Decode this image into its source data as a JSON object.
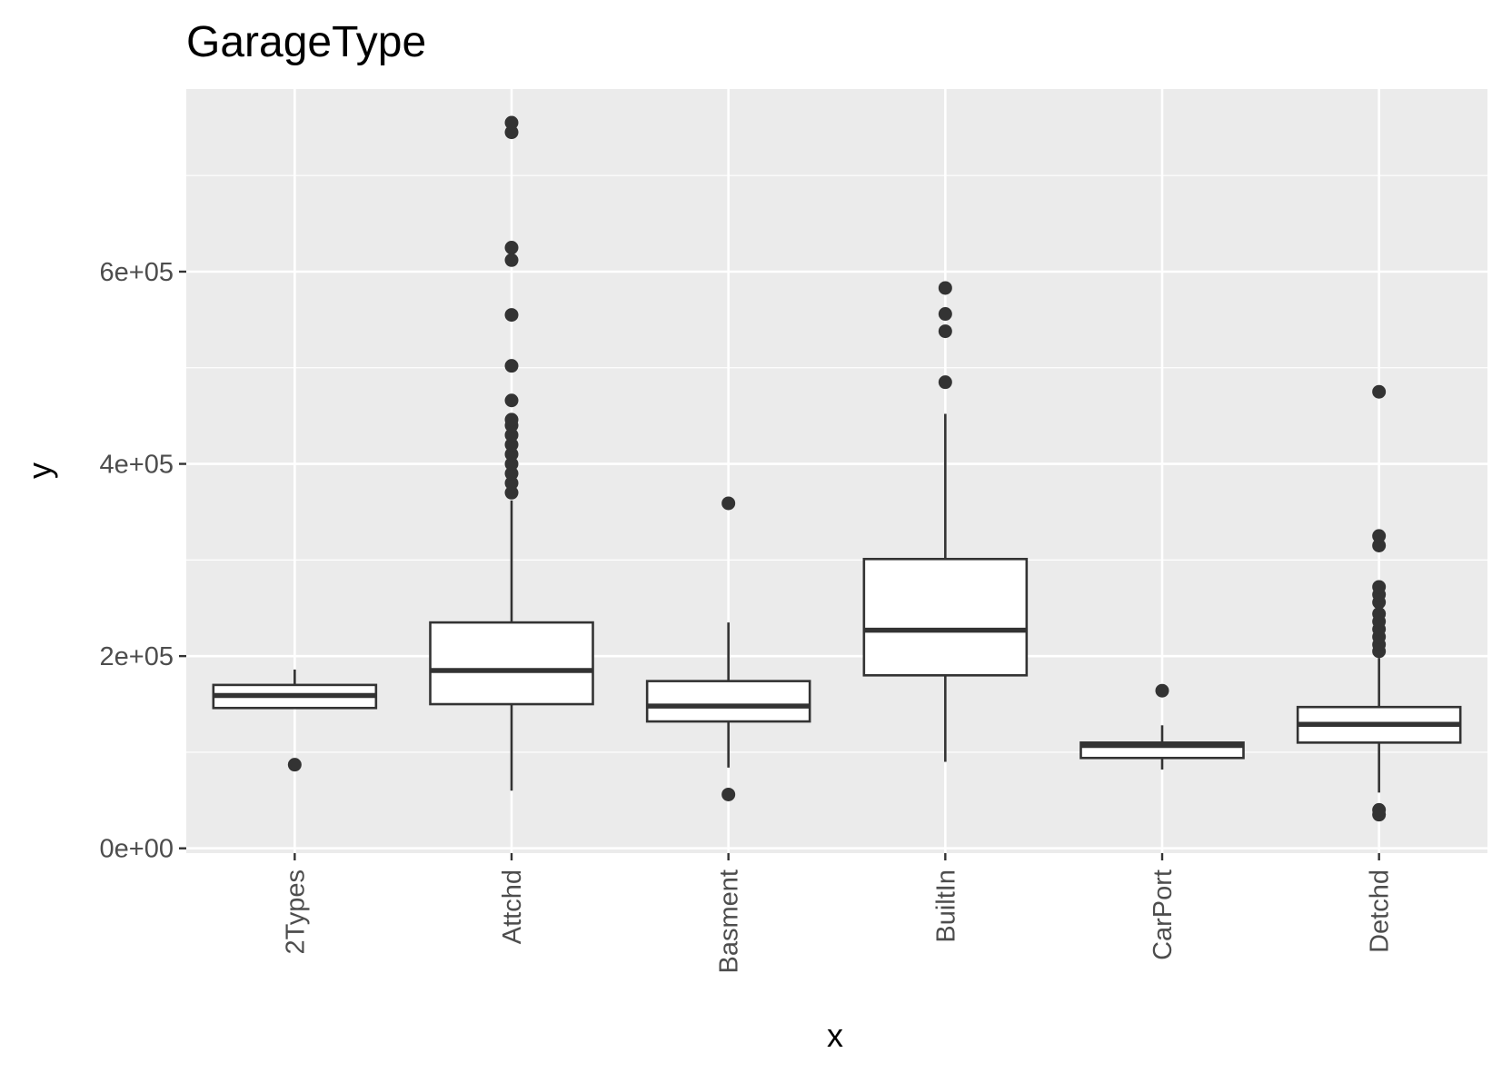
{
  "chart_data": {
    "type": "boxplot",
    "title": "GarageType",
    "xlabel": "x",
    "ylabel": "y",
    "ylim": [
      -5000,
      790000
    ],
    "y_ticks": [
      0,
      200000,
      400000,
      600000
    ],
    "y_tick_labels": [
      "0e+00",
      "2e+05",
      "4e+05",
      "6e+05"
    ],
    "y_minor_ticks": [
      100000,
      300000,
      500000,
      700000
    ],
    "categories": [
      "2Types",
      "Attchd",
      "Basment",
      "BuiltIn",
      "CarPort",
      "Detchd"
    ],
    "boxes": [
      {
        "category": "2Types",
        "whisker_low": 146000,
        "q1": 146000,
        "median": 159000,
        "q3": 170000,
        "whisker_high": 186000,
        "outliers": [
          87000
        ]
      },
      {
        "category": "Attchd",
        "whisker_low": 60000,
        "q1": 150000,
        "median": 185000,
        "q3": 235000,
        "whisker_high": 362000,
        "outliers": [
          370000,
          380000,
          390000,
          400000,
          410000,
          420000,
          430000,
          440000,
          446000,
          466000,
          502000,
          555000,
          612000,
          625000,
          745000,
          755000
        ]
      },
      {
        "category": "Basment",
        "whisker_low": 84000,
        "q1": 132000,
        "median": 148000,
        "q3": 174000,
        "whisker_high": 235000,
        "outliers": [
          56000,
          359000
        ]
      },
      {
        "category": "BuiltIn",
        "whisker_low": 90000,
        "q1": 180000,
        "median": 227000,
        "q3": 301000,
        "whisker_high": 452000,
        "outliers": [
          485000,
          538000,
          556000,
          583000
        ]
      },
      {
        "category": "CarPort",
        "whisker_low": 82000,
        "q1": 94000,
        "median": 107000,
        "q3": 110000,
        "whisker_high": 128000,
        "outliers": [
          164000
        ]
      },
      {
        "category": "Detchd",
        "whisker_low": 58000,
        "q1": 110000,
        "median": 129000,
        "q3": 147000,
        "whisker_high": 198000,
        "outliers": [
          35000,
          40000,
          205000,
          212000,
          220000,
          228000,
          236000,
          244000,
          256000,
          264000,
          272000,
          315000,
          325000,
          475000
        ]
      }
    ],
    "colors": {
      "panel_background": "#ebebeb",
      "grid": "#ffffff",
      "box_fill": "#ffffff",
      "box_stroke": "#333333",
      "outlier": "#333333",
      "tick_label": "#4d4d4d"
    },
    "grid": true,
    "legend": "none"
  }
}
